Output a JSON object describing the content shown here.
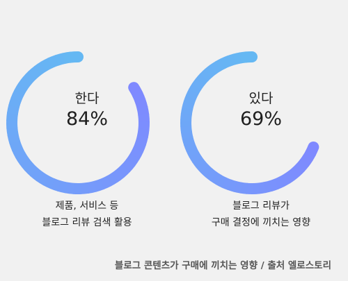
{
  "chart_data": [
    {
      "type": "gauge",
      "label": "한다",
      "value": 84,
      "value_text": "84%",
      "caption": [
        "제품, 서비스 등",
        "블로그 리뷰 검색 활용"
      ],
      "colors": {
        "start": "#7f89ff",
        "end": "#65b8f3"
      }
    },
    {
      "type": "gauge",
      "label": "있다",
      "value": 69,
      "value_text": "69%",
      "caption": [
        "블로그 리뷰가",
        "구매 결정에 끼치는 영향"
      ],
      "colors": {
        "start": "#7f89ff",
        "end": "#65b8f3"
      }
    }
  ],
  "source": "블로그 콘텐츠가 구매에 끼치는 영향 / 출처 엘로스토리"
}
